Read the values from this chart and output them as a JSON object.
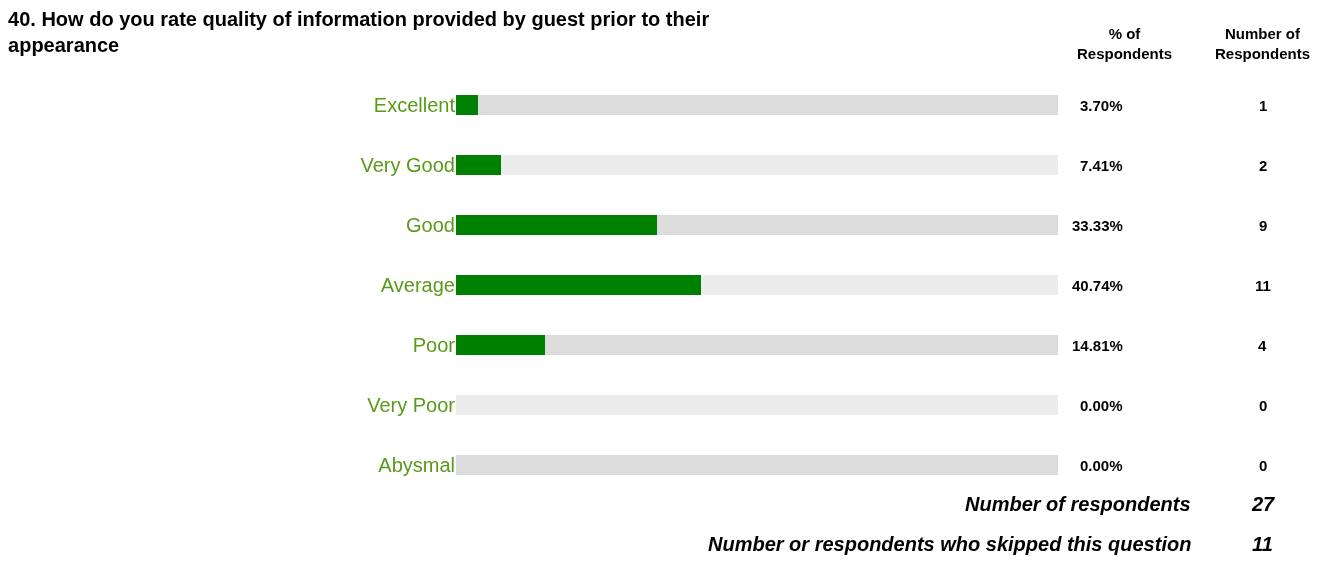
{
  "chart_data": {
    "type": "bar",
    "orientation": "horizontal",
    "stacked": true,
    "title": "40. How do you rate quality of information provided by guest prior to their appearance",
    "categories": [
      "Excellent",
      "Very Good",
      "Good",
      "Average",
      "Poor",
      "Very Poor",
      "Abysmal"
    ],
    "series": [
      {
        "color": "#008000",
        "values": [
          3.7,
          7.41,
          33.33,
          40.74,
          14.81,
          0.0,
          0.0
        ],
        "value_labels": [
          "3.70%",
          "7.41%",
          "33.33%",
          "40.74%",
          "14.81%",
          "0.00%",
          "0.00%"
        ]
      },
      {
        "colors": [
          "#dcdcdc",
          "#ececec",
          "#dcdcdc",
          "#ececec",
          "#dcdcdc",
          "#ececec",
          "#dcdcdc"
        ],
        "values": [
          96.3,
          92.59,
          66.67,
          59.26,
          85.19,
          100.0,
          100.0
        ]
      }
    ],
    "xlim": [
      0,
      100
    ],
    "tick_labels": "y",
    "legend": false,
    "annotations": [
      "% of\nRespondents",
      "Number of\nRespondents",
      "1",
      "2",
      "9",
      "11",
      "4",
      "0",
      "0",
      "Number of respondents",
      "27",
      "Number or respondents who skipped this question",
      "11"
    ]
  }
}
